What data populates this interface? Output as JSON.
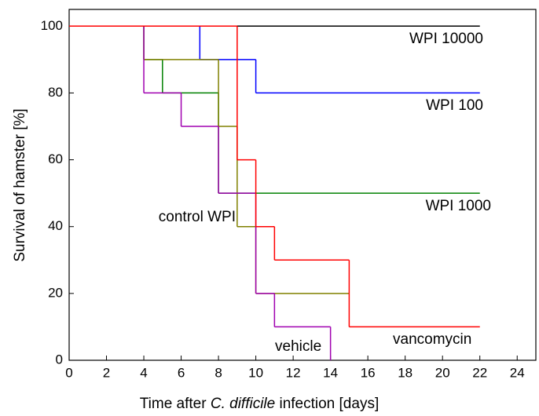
{
  "chart_data": {
    "type": "step",
    "xlabel": [
      "Time after ",
      "C. difficile",
      " infection [days]"
    ],
    "ylabel": "Survival of hamster [%]",
    "xlim": [
      0,
      25
    ],
    "ylim": [
      0,
      105
    ],
    "xticks": [
      0,
      2,
      4,
      6,
      8,
      10,
      12,
      14,
      16,
      18,
      20,
      22,
      24
    ],
    "yticks": [
      0,
      20,
      40,
      60,
      80,
      100
    ],
    "series": [
      {
        "name": "WPI 10000",
        "color": "#000000",
        "x": [
          0,
          22
        ],
        "values": [
          100,
          100
        ]
      },
      {
        "name": "WPI 100",
        "color": "#0000ff",
        "x": [
          0,
          7,
          10,
          22
        ],
        "values": [
          100,
          90,
          80,
          80
        ]
      },
      {
        "name": "WPI 1000",
        "color": "#008000",
        "x": [
          0,
          4,
          5,
          8,
          22
        ],
        "values": [
          100,
          90,
          80,
          50,
          50
        ]
      },
      {
        "name": "control WPI",
        "color": "#808000",
        "x": [
          0,
          4,
          8,
          9,
          10,
          15
        ],
        "values": [
          100,
          90,
          70,
          40,
          20,
          20
        ]
      },
      {
        "name": "vehicle",
        "color": "#a000b0",
        "x": [
          0,
          4,
          6,
          8,
          10,
          11,
          14
        ],
        "values": [
          100,
          80,
          70,
          50,
          20,
          10,
          0
        ]
      },
      {
        "name": "vancomycin",
        "color": "#ff0000",
        "x": [
          0,
          9,
          10,
          11,
          15,
          22
        ],
        "values": [
          100,
          60,
          40,
          30,
          10,
          10
        ]
      }
    ]
  }
}
